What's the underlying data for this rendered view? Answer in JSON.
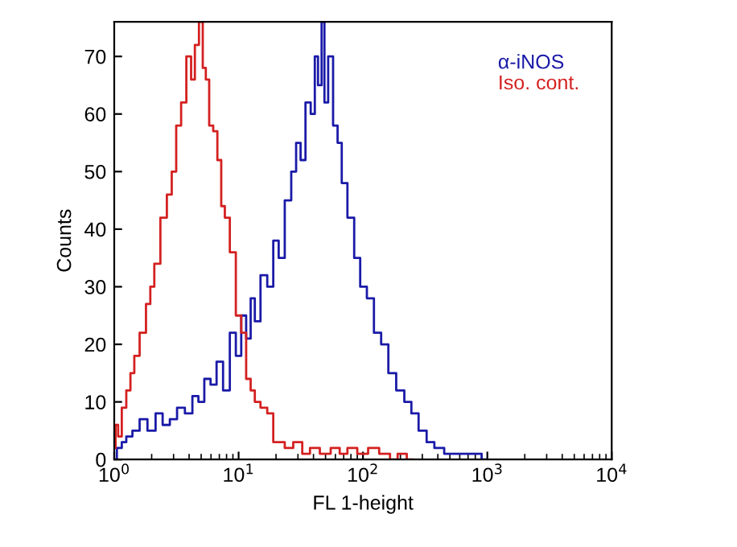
{
  "chart_data": {
    "type": "step",
    "xlabel": "FL 1-height",
    "ylabel": "Counts",
    "log": "x",
    "xlim": [
      1,
      10000
    ],
    "ylim": [
      0,
      76
    ],
    "xticks": [
      {
        "value": 1,
        "label": "10$^{0}$"
      },
      {
        "value": 10,
        "label": "10$^{1}$"
      },
      {
        "value": 100,
        "label": "10$^{2}$"
      },
      {
        "value": 1000,
        "label": "10$^{3}$"
      },
      {
        "value": 10000,
        "label": "10$^{4}$"
      }
    ],
    "yticks": [
      0,
      10,
      20,
      30,
      40,
      50,
      60,
      70
    ],
    "legend": "top right",
    "grid": false,
    "marker": "none",
    "line_style": "solid",
    "series": [
      {
        "name": "α-iNOS",
        "color": "#1a1aa8",
        "x": [
          1,
          1.1,
          1.2,
          1.3,
          1.5,
          1.7,
          2,
          2.3,
          2.6,
          3,
          3.4,
          4,
          4.5,
          5,
          5.6,
          6.3,
          7,
          8,
          9,
          10,
          11,
          12,
          13,
          14,
          16,
          18,
          20,
          22,
          25,
          28,
          30,
          33,
          36,
          40,
          42,
          45,
          48,
          50,
          55,
          60,
          65,
          70,
          80,
          90,
          100,
          115,
          130,
          150,
          170,
          200,
          230,
          260,
          300,
          350,
          400,
          500,
          600,
          800,
          1000
        ],
        "values": [
          0,
          2,
          3,
          4,
          5,
          7,
          5,
          8,
          6,
          7,
          9,
          8,
          11,
          10,
          14,
          13,
          17,
          12,
          22,
          18,
          25,
          21,
          28,
          24,
          32,
          30,
          38,
          35,
          45,
          50,
          55,
          52,
          62,
          60,
          70,
          65,
          76,
          62,
          70,
          58,
          55,
          48,
          42,
          35,
          30,
          28,
          22,
          20,
          15,
          12,
          10,
          8,
          5,
          3,
          2,
          1,
          1,
          1,
          0
        ]
      },
      {
        "name": "Iso. cont.",
        "color": "#d42020",
        "x": [
          1,
          1.05,
          1.1,
          1.2,
          1.3,
          1.4,
          1.5,
          1.7,
          1.9,
          2,
          2.2,
          2.5,
          2.8,
          3,
          3.3,
          3.6,
          4,
          4.3,
          4.6,
          5,
          5.3,
          5.6,
          6,
          6.5,
          7,
          7.5,
          8,
          9,
          10,
          11,
          12,
          13,
          14,
          16,
          18,
          20,
          22,
          25,
          30,
          35,
          40,
          50,
          60,
          70,
          80,
          100,
          120,
          150,
          180,
          200,
          250
        ],
        "values": [
          2,
          6,
          4,
          9,
          12,
          15,
          18,
          22,
          27,
          30,
          34,
          42,
          46,
          50,
          58,
          62,
          70,
          66,
          72,
          76,
          68,
          66,
          58,
          57,
          52,
          44,
          42,
          36,
          25,
          22,
          14,
          12,
          10,
          9,
          8,
          3,
          3,
          2,
          3,
          1,
          2,
          1,
          2,
          1,
          2,
          1,
          2,
          1,
          0,
          1,
          0
        ]
      }
    ]
  }
}
